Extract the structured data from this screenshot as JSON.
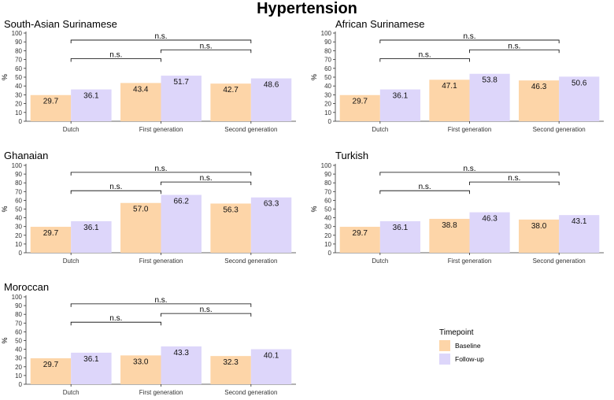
{
  "title": "Hypertension",
  "colors": {
    "baseline": "#FDD5A8",
    "followup": "#DDD6FA",
    "axis": "#333333"
  },
  "legend": {
    "title": "Timepoint",
    "items": [
      "Baseline",
      "Follow-up"
    ],
    "position": "right"
  },
  "chart_data": [
    {
      "type": "bar",
      "title": "South-Asian Surinamese",
      "categories": [
        "Dutch",
        "First generation",
        "Second generation"
      ],
      "ylabel": "%",
      "ylim": [
        0,
        100
      ],
      "yticks": [
        0,
        10,
        20,
        30,
        40,
        50,
        60,
        70,
        80,
        90,
        100
      ],
      "series": [
        {
          "name": "Baseline",
          "values": [
            29.7,
            43.4,
            42.7
          ],
          "labels": [
            "29.7",
            "43.4",
            "42.7"
          ]
        },
        {
          "name": "Follow-up",
          "values": [
            36.1,
            51.7,
            48.6
          ],
          "labels": [
            "36.1",
            "51.7",
            "48.6"
          ]
        }
      ],
      "annotations": [
        "n.s.",
        "n.s.",
        "n.s."
      ]
    },
    {
      "type": "bar",
      "title": "African Surinamese",
      "categories": [
        "Dutch",
        "First generation",
        "Second generation"
      ],
      "ylabel": "%",
      "ylim": [
        0,
        100
      ],
      "yticks": [
        0,
        10,
        20,
        30,
        40,
        50,
        60,
        70,
        80,
        90,
        100
      ],
      "series": [
        {
          "name": "Baseline",
          "values": [
            29.7,
            47.1,
            46.3
          ],
          "labels": [
            "29.7",
            "47.1",
            "46.3"
          ]
        },
        {
          "name": "Follow-up",
          "values": [
            36.1,
            53.8,
            50.6
          ],
          "labels": [
            "36.1",
            "53.8",
            "50.6"
          ]
        }
      ],
      "annotations": [
        "n.s.",
        "n.s.",
        "n.s."
      ]
    },
    {
      "type": "bar",
      "title": "Ghanaian",
      "categories": [
        "Dutch",
        "First generation",
        "Second generation"
      ],
      "ylabel": "%",
      "ylim": [
        0,
        100
      ],
      "yticks": [
        0,
        10,
        20,
        30,
        40,
        50,
        60,
        70,
        80,
        90,
        100
      ],
      "series": [
        {
          "name": "Baseline",
          "values": [
            29.7,
            57.0,
            56.3
          ],
          "labels": [
            "29.7",
            "57.0",
            "56.3"
          ]
        },
        {
          "name": "Follow-up",
          "values": [
            36.1,
            66.2,
            63.3
          ],
          "labels": [
            "36.1",
            "66.2",
            "63.3"
          ]
        }
      ],
      "annotations": [
        "n.s.",
        "n.s.",
        "n.s."
      ]
    },
    {
      "type": "bar",
      "title": "Turkish",
      "categories": [
        "Dutch",
        "First generation",
        "Second generation"
      ],
      "ylabel": "%",
      "ylim": [
        0,
        100
      ],
      "yticks": [
        0,
        10,
        20,
        30,
        40,
        50,
        60,
        70,
        80,
        90,
        100
      ],
      "series": [
        {
          "name": "Baseline",
          "values": [
            29.7,
            38.8,
            38.0
          ],
          "labels": [
            "29.7",
            "38.8",
            "38.0"
          ]
        },
        {
          "name": "Follow-up",
          "values": [
            36.1,
            46.3,
            43.1
          ],
          "labels": [
            "36.1",
            "46.3",
            "43.1"
          ]
        }
      ],
      "annotations": [
        "n.s.",
        "n.s.",
        "n.s."
      ]
    },
    {
      "type": "bar",
      "title": "Moroccan",
      "categories": [
        "Dutch",
        "First generation",
        "Second generation"
      ],
      "ylabel": "%",
      "ylim": [
        0,
        100
      ],
      "yticks": [
        0,
        10,
        20,
        30,
        40,
        50,
        60,
        70,
        80,
        90,
        100
      ],
      "series": [
        {
          "name": "Baseline",
          "values": [
            29.7,
            33.0,
            32.3
          ],
          "labels": [
            "29.7",
            "33.0",
            "32.3"
          ]
        },
        {
          "name": "Follow-up",
          "values": [
            36.1,
            43.3,
            40.1
          ],
          "labels": [
            "36.1",
            "43.3",
            "40.1"
          ]
        }
      ],
      "annotations": [
        "n.s.",
        "n.s.",
        "n.s."
      ]
    }
  ]
}
